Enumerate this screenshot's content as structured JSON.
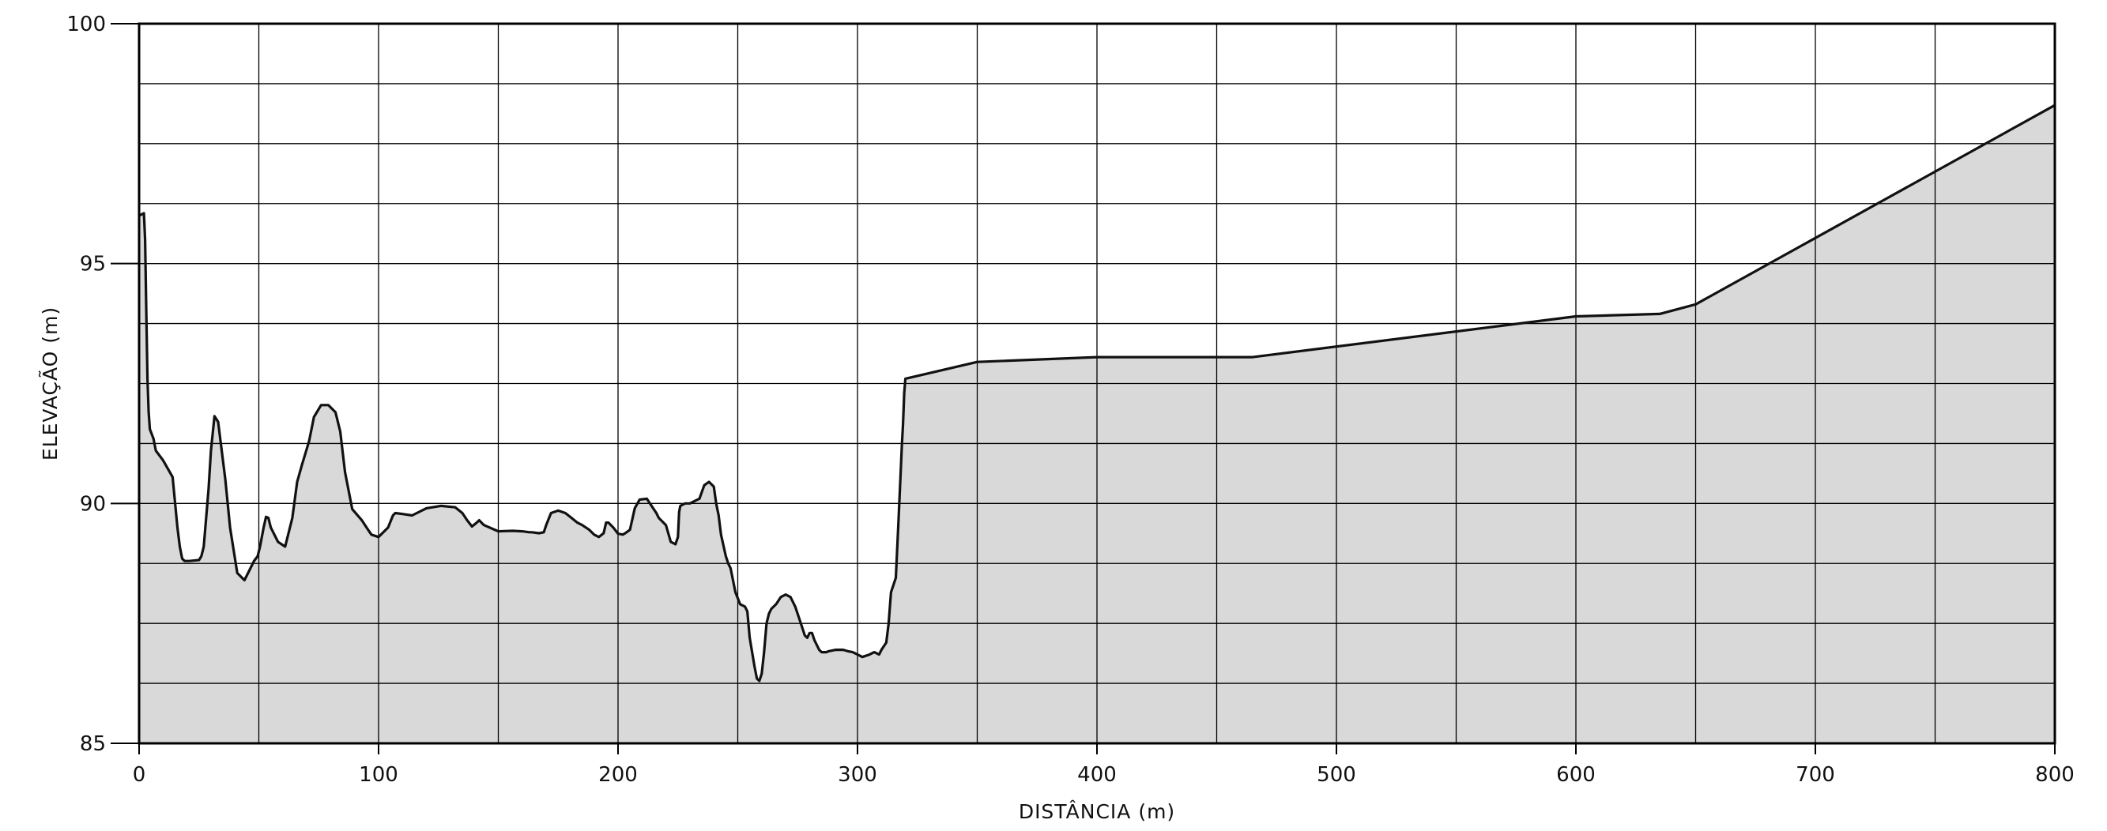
{
  "chart_data": {
    "type": "area",
    "title": "",
    "xlabel": "DISTÂNCIA  (m)",
    "ylabel": "ELEVAÇÃO  (m)",
    "xlim": [
      0,
      800
    ],
    "ylim": [
      85,
      100
    ],
    "x_major_ticks": [
      "0",
      "100",
      "200",
      "300",
      "400",
      "500",
      "600",
      "700",
      "800"
    ],
    "y_major_ticks": [
      "85",
      "90",
      "95",
      "100"
    ],
    "x_grid_step": 50,
    "y_grid_step": 1.25,
    "grid": true,
    "legend": "none",
    "fill_color": "#d9d9d9",
    "line_color": "#111111",
    "series": [
      {
        "x": [
          0,
          2,
          2.5,
          3,
          3.5,
          4,
          4.5,
          6,
          7,
          10,
          14,
          16,
          17,
          18,
          19,
          21,
          25,
          26,
          27,
          29,
          30,
          31.5,
          33,
          36,
          38,
          41,
          44,
          46,
          48,
          49.5,
          50.5,
          52,
          53,
          54,
          55,
          58,
          61,
          64,
          66,
          68,
          71,
          73,
          76,
          79,
          82,
          84,
          86,
          89,
          93,
          95,
          97,
          100,
          104,
          106,
          107,
          110,
          114,
          120,
          126,
          132,
          135,
          137,
          139,
          141,
          142,
          144,
          150,
          156,
          160,
          163,
          164,
          167,
          169,
          170,
          172,
          175,
          178,
          180,
          183,
          185,
          188,
          190,
          192,
          194,
          195,
          196,
          198,
          200,
          202,
          203,
          205,
          207,
          209,
          212,
          214,
          216,
          217,
          220,
          222,
          224,
          225,
          225.5,
          226,
          228,
          230,
          234,
          236,
          238,
          240,
          241,
          242,
          243,
          245,
          246,
          247,
          249,
          251,
          253,
          254,
          255,
          257,
          258,
          259,
          260,
          261,
          262,
          263,
          264,
          265,
          266,
          268,
          270,
          272,
          274,
          276,
          278,
          279,
          280,
          281,
          282,
          284,
          285,
          287,
          288,
          291,
          294,
          296,
          298,
          300,
          302,
          305,
          307,
          309,
          310,
          312,
          313,
          314,
          316,
          317,
          318,
          318.5,
          319,
          319.5,
          320,
          350,
          400,
          465,
          600,
          635,
          650,
          800
        ],
        "y": [
          96.0,
          96.05,
          95.5,
          94.0,
          92.6,
          91.9,
          91.55,
          91.35,
          91.1,
          90.9,
          90.55,
          89.5,
          89.1,
          88.85,
          88.8,
          88.8,
          88.82,
          88.9,
          89.1,
          90.3,
          91.1,
          91.82,
          91.7,
          90.5,
          89.5,
          88.55,
          88.4,
          88.6,
          88.8,
          88.9,
          89.1,
          89.5,
          89.72,
          89.7,
          89.5,
          89.2,
          89.1,
          89.7,
          90.45,
          90.8,
          91.3,
          91.8,
          92.05,
          92.05,
          91.9,
          91.5,
          90.65,
          89.88,
          89.65,
          89.5,
          89.35,
          89.3,
          89.5,
          89.75,
          89.8,
          89.78,
          89.75,
          89.9,
          89.95,
          89.92,
          89.8,
          89.65,
          89.52,
          89.6,
          89.65,
          89.55,
          89.42,
          89.43,
          89.42,
          89.4,
          89.4,
          89.38,
          89.4,
          89.55,
          89.8,
          89.85,
          89.8,
          89.72,
          89.6,
          89.55,
          89.45,
          89.35,
          89.3,
          89.38,
          89.6,
          89.6,
          89.5,
          89.37,
          89.35,
          89.38,
          89.45,
          89.9,
          90.08,
          90.1,
          89.95,
          89.8,
          89.7,
          89.55,
          89.2,
          89.15,
          89.3,
          89.82,
          89.95,
          90.0,
          90.0,
          90.1,
          90.38,
          90.45,
          90.35,
          90.0,
          89.75,
          89.35,
          88.9,
          88.75,
          88.65,
          88.15,
          87.9,
          87.85,
          87.75,
          87.2,
          86.6,
          86.35,
          86.3,
          86.45,
          86.9,
          87.5,
          87.7,
          87.8,
          87.85,
          87.9,
          88.05,
          88.1,
          88.05,
          87.85,
          87.55,
          87.25,
          87.2,
          87.3,
          87.3,
          87.15,
          86.95,
          86.9,
          86.9,
          86.92,
          86.95,
          86.95,
          86.92,
          86.9,
          86.85,
          86.8,
          86.85,
          86.9,
          86.85,
          86.95,
          87.1,
          87.5,
          88.15,
          88.45,
          89.5,
          90.6,
          91.2,
          91.65,
          92.3,
          92.6,
          92.95,
          93.05,
          93.05,
          93.9,
          93.95,
          94.15,
          98.3
        ]
      }
    ]
  }
}
